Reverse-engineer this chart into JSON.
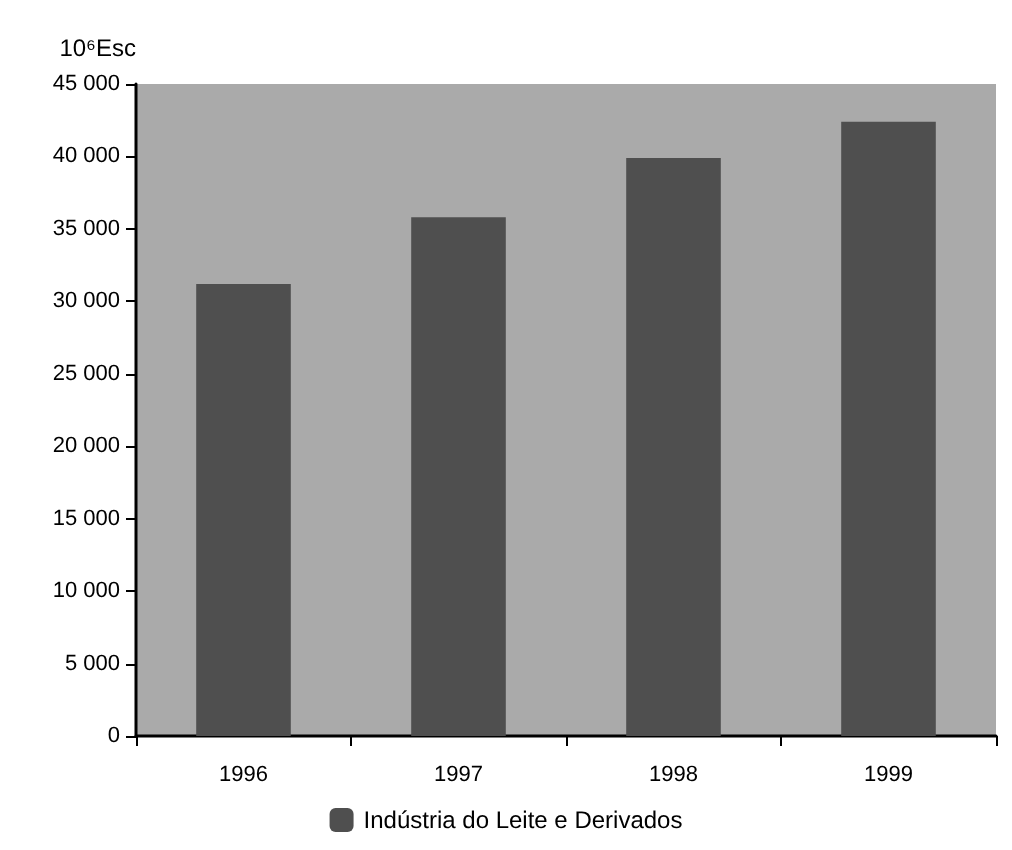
{
  "chart_data": {
    "type": "bar",
    "ylabel": "10⁶Esc",
    "categories": [
      "1996",
      "1997",
      "1998",
      "1999"
    ],
    "series": [
      {
        "name": "Indústria do Leite e Derivados",
        "color": "#4f4f4f",
        "values": [
          31200,
          35800,
          39900,
          42400
        ]
      }
    ],
    "ylim": [
      0,
      45000
    ],
    "yticks": [
      {
        "value": 0,
        "label": "0"
      },
      {
        "value": 5000,
        "label": "5 000"
      },
      {
        "value": 10000,
        "label": "10 000"
      },
      {
        "value": 15000,
        "label": "15 000"
      },
      {
        "value": 20000,
        "label": "20 000"
      },
      {
        "value": 25000,
        "label": "25 000"
      },
      {
        "value": 30000,
        "label": "30 000"
      },
      {
        "value": 35000,
        "label": "35 000"
      },
      {
        "value": 40000,
        "label": "40 000"
      },
      {
        "value": 45000,
        "label": "45 000"
      }
    ],
    "grid": false,
    "legend": "bottom"
  }
}
